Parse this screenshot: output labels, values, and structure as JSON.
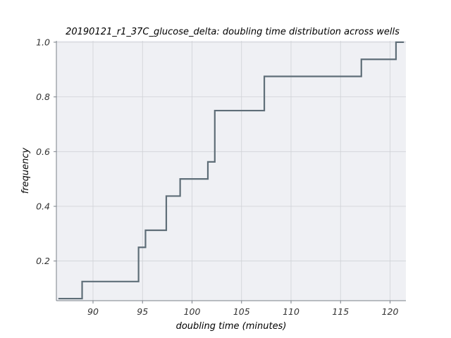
{
  "chart_data": {
    "type": "line",
    "drawstyle": "steps-post",
    "title": "20190121_r1_37C_glucose_delta: doubling time distribution across wells",
    "xlabel": "doubling time (minutes)",
    "ylabel": "frequency",
    "xlim": [
      86.3,
      121.6
    ],
    "ylim": [
      0.055,
      1.005
    ],
    "xticks": [
      90,
      95,
      100,
      105,
      110,
      115,
      120
    ],
    "xtick_labels": [
      "90",
      "95",
      "100",
      "105",
      "110",
      "115",
      "120"
    ],
    "yticks": [
      0.2,
      0.4,
      0.6,
      0.8,
      1.0
    ],
    "ytick_labels": [
      "0.2",
      "0.4",
      "0.6",
      "0.8",
      "1.0"
    ],
    "grid": true,
    "background": "#eff0f4",
    "line_color": "#5f6e78",
    "series": [
      {
        "x": [
          86.5,
          88.9,
          94.6,
          95.3,
          97.4,
          98.8,
          101.6,
          102.3,
          107.3,
          117.1,
          120.6,
          121.4
        ],
        "y": [
          0.0625,
          0.125,
          0.25,
          0.3125,
          0.4375,
          0.5,
          0.5625,
          0.75,
          0.875,
          0.9375,
          1.0,
          1.0
        ]
      }
    ]
  }
}
